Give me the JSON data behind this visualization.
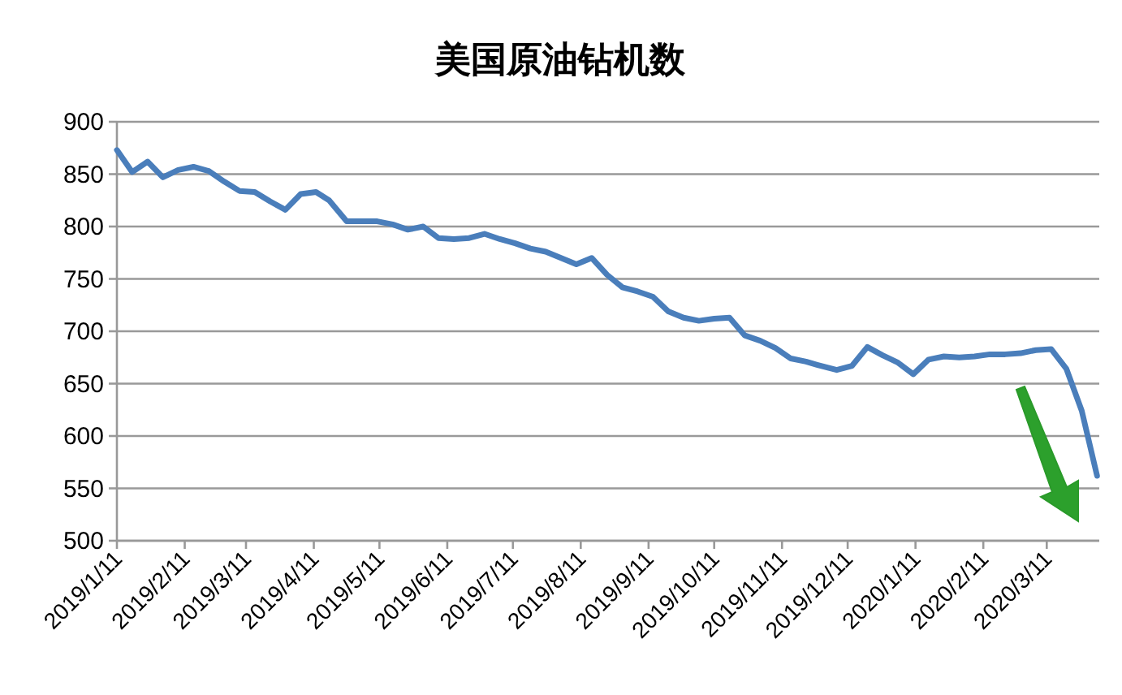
{
  "chart_data": {
    "type": "line",
    "title": "美国原油钻机数",
    "x": [
      "2019-01-11",
      "2019-01-18",
      "2019-01-25",
      "2019-02-01",
      "2019-02-08",
      "2019-02-15",
      "2019-02-22",
      "2019-03-01",
      "2019-03-08",
      "2019-03-15",
      "2019-03-22",
      "2019-03-29",
      "2019-04-05",
      "2019-04-12",
      "2019-04-18",
      "2019-04-26",
      "2019-05-03",
      "2019-05-10",
      "2019-05-17",
      "2019-05-24",
      "2019-05-31",
      "2019-06-07",
      "2019-06-14",
      "2019-06-21",
      "2019-06-28",
      "2019-07-05",
      "2019-07-12",
      "2019-07-19",
      "2019-07-26",
      "2019-08-02",
      "2019-08-09",
      "2019-08-16",
      "2019-08-23",
      "2019-08-30",
      "2019-09-06",
      "2019-09-13",
      "2019-09-20",
      "2019-09-27",
      "2019-10-04",
      "2019-10-11",
      "2019-10-18",
      "2019-10-25",
      "2019-11-01",
      "2019-11-08",
      "2019-11-15",
      "2019-11-22",
      "2019-11-27",
      "2019-12-06",
      "2019-12-13",
      "2019-12-20",
      "2019-12-27",
      "2020-01-03",
      "2020-01-10",
      "2020-01-17",
      "2020-01-24",
      "2020-01-31",
      "2020-02-07",
      "2020-02-14",
      "2020-02-21",
      "2020-02-28",
      "2020-03-06",
      "2020-03-13",
      "2020-03-20",
      "2020-03-27",
      "2020-04-03"
    ],
    "series": [
      {
        "color": "#4a7ebb",
        "values": [
          873,
          852,
          862,
          847,
          854,
          857,
          853,
          843,
          834,
          833,
          824,
          816,
          831,
          833,
          825,
          805,
          805,
          805,
          802,
          797,
          800,
          789,
          788,
          789,
          793,
          788,
          784,
          779,
          776,
          770,
          764,
          770,
          754,
          742,
          738,
          733,
          719,
          713,
          710,
          712,
          713,
          696,
          691,
          684,
          674,
          671,
          668,
          663,
          667,
          685,
          677,
          670,
          659,
          673,
          676,
          675,
          676,
          678,
          678,
          679,
          682,
          683,
          664,
          624,
          562
        ]
      }
    ],
    "xlim": [
      "2019-01-11",
      "2020-04-04"
    ],
    "ylim": [
      500,
      900
    ],
    "yticks": [
      500,
      550,
      600,
      650,
      700,
      750,
      800,
      850,
      900
    ],
    "xticks": [
      {
        "value": "2019-01-11",
        "label": "2019/1/11"
      },
      {
        "value": "2019-02-11",
        "label": "2019/2/11"
      },
      {
        "value": "2019-03-11",
        "label": "2019/3/11"
      },
      {
        "value": "2019-04-11",
        "label": "2019/4/11"
      },
      {
        "value": "2019-05-11",
        "label": "2019/5/11"
      },
      {
        "value": "2019-06-11",
        "label": "2019/6/11"
      },
      {
        "value": "2019-07-11",
        "label": "2019/7/11"
      },
      {
        "value": "2019-08-11",
        "label": "2019/8/11"
      },
      {
        "value": "2019-09-11",
        "label": "2019/9/11"
      },
      {
        "value": "2019-10-11",
        "label": "2019/10/11"
      },
      {
        "value": "2019-11-11",
        "label": "2019/11/11"
      },
      {
        "value": "2019-12-11",
        "label": "2019/12/11"
      },
      {
        "value": "2020-01-11",
        "label": "2020/1/11"
      },
      {
        "value": "2020-02-11",
        "label": "2020/2/11"
      },
      {
        "value": "2020-03-11",
        "label": "2020/3/11"
      }
    ],
    "grid": "y",
    "marker": "none",
    "line_style": "solid"
  }
}
